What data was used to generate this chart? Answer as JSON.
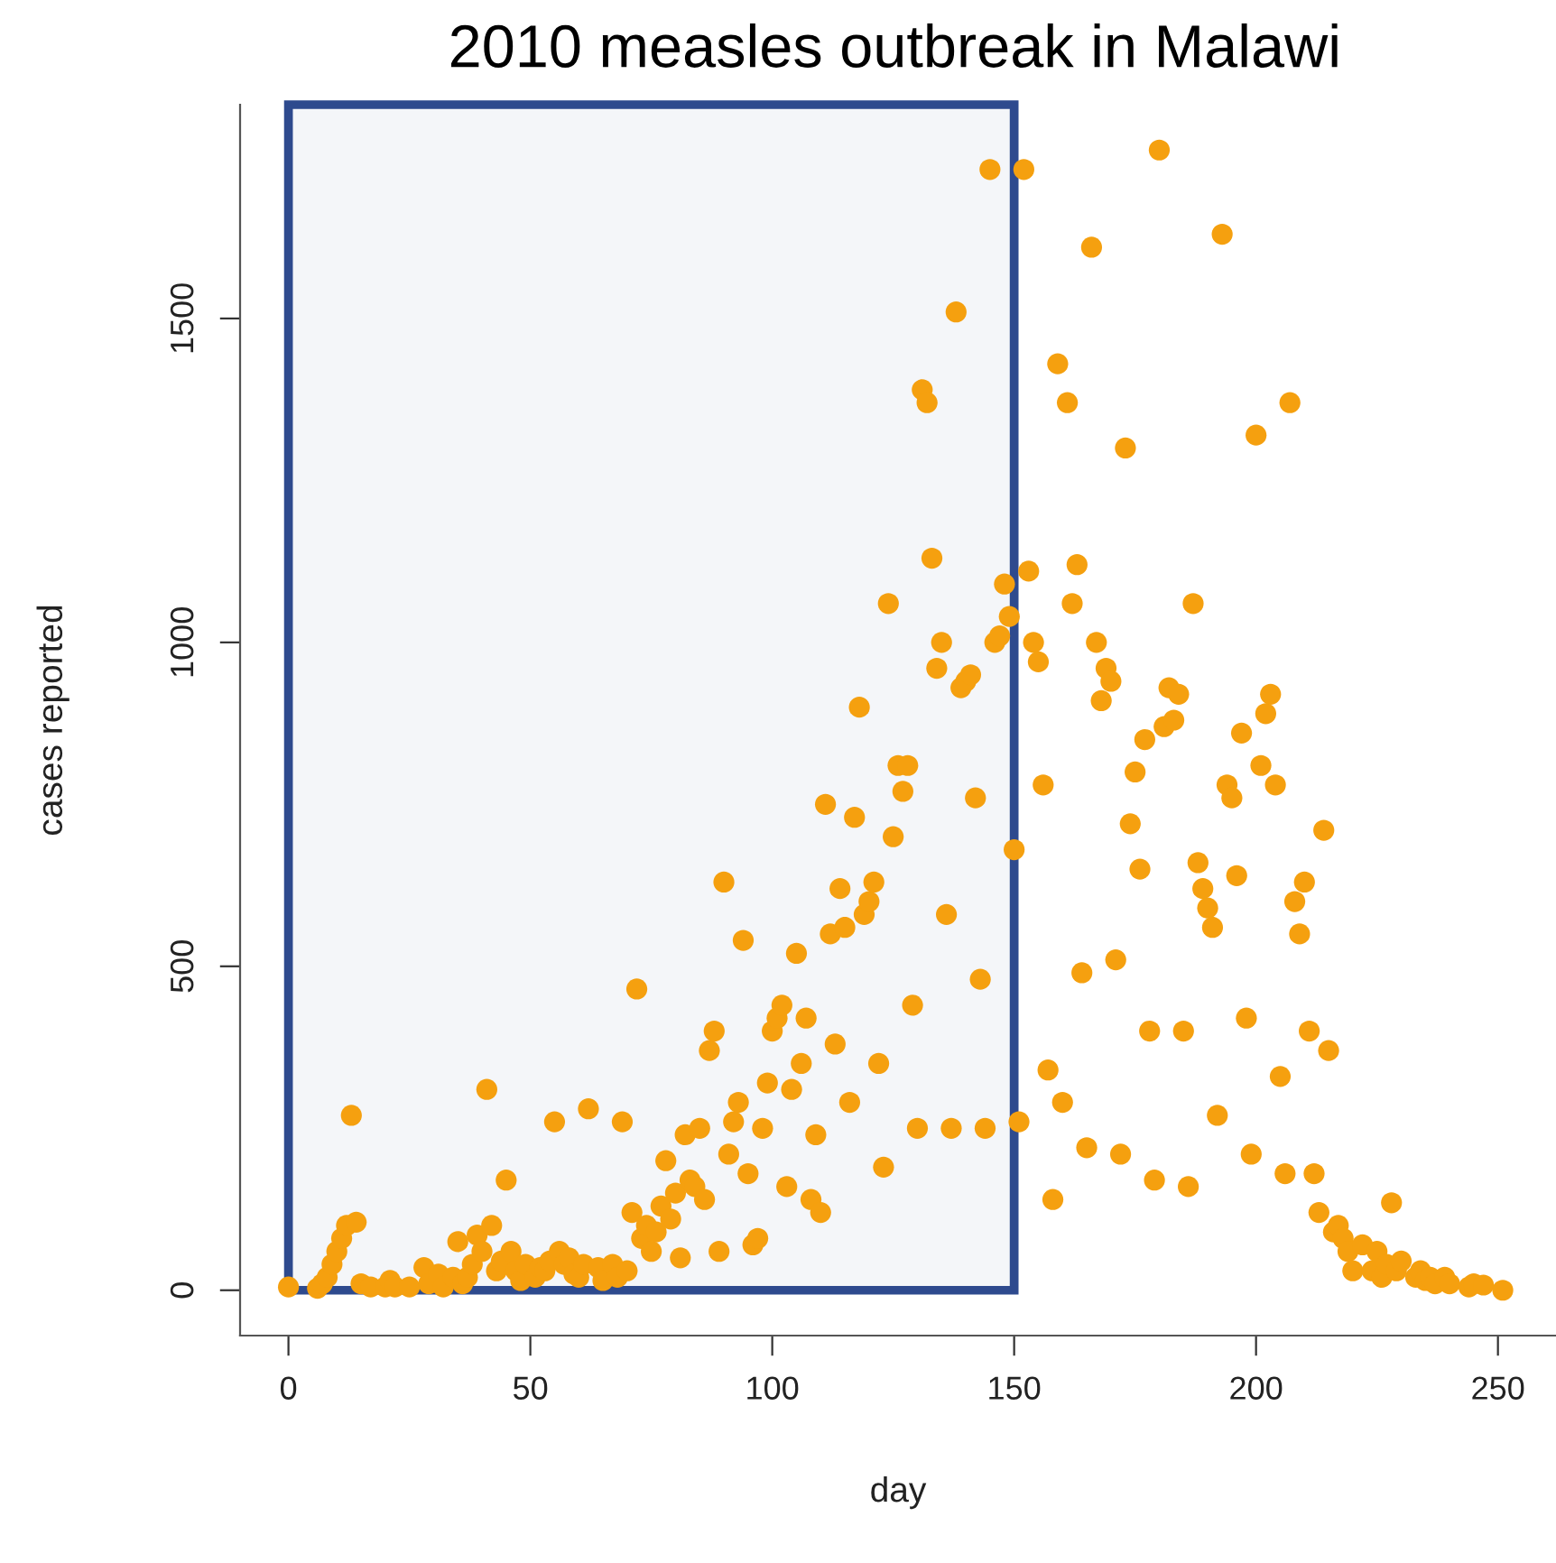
{
  "chart_data": {
    "type": "scatter",
    "title": "2010 measles outbreak in Malawi",
    "xlabel": "day",
    "ylabel": "cases reported",
    "x": [
      0,
      1,
      2,
      3,
      4,
      5,
      6,
      7,
      8,
      9,
      10,
      11,
      12,
      13,
      14,
      15,
      16,
      17,
      18,
      19,
      20,
      21,
      22,
      23,
      24,
      25,
      26,
      27,
      28,
      29,
      30,
      31,
      32,
      33,
      34,
      35,
      36,
      37,
      38,
      39,
      40,
      41,
      42,
      43,
      44,
      45,
      46,
      47,
      48,
      49,
      50,
      51,
      52,
      53,
      54,
      55,
      56,
      57,
      58,
      59,
      60,
      61,
      62,
      63,
      64,
      65,
      66,
      67,
      68,
      69,
      70,
      71,
      72,
      73,
      74,
      75,
      76,
      77,
      78,
      79,
      80,
      81,
      82,
      83,
      84,
      85,
      86,
      87,
      88,
      89,
      90,
      91,
      92,
      93,
      94,
      95,
      96,
      97,
      98,
      99,
      100,
      101,
      102,
      103,
      104,
      105,
      106,
      107,
      108,
      109,
      110,
      111,
      112,
      113,
      114,
      115,
      116,
      117,
      118,
      119,
      120,
      121,
      122,
      123,
      124,
      125,
      126,
      127,
      128,
      129,
      130,
      131,
      132,
      133,
      134,
      135,
      136,
      137,
      138,
      139,
      140,
      141,
      142,
      143,
      144,
      145,
      146,
      147,
      148,
      149,
      150,
      151,
      152,
      153,
      154,
      155,
      156,
      157,
      158,
      159,
      160,
      161,
      162,
      163,
      164,
      165,
      166,
      167,
      168,
      169,
      170,
      171,
      172,
      173,
      174,
      175,
      176,
      177,
      178,
      179,
      180,
      181,
      182,
      183,
      184,
      185,
      186,
      187,
      188,
      189,
      190,
      191,
      192,
      193,
      194,
      195,
      196,
      197,
      198,
      199,
      200,
      201,
      202,
      203,
      204,
      205,
      206,
      207,
      208,
      209,
      210,
      211,
      212,
      213,
      214,
      215,
      216,
      217,
      218,
      219,
      220,
      221,
      222,
      223,
      224,
      225,
      226,
      227,
      228,
      229,
      230,
      231,
      232,
      233,
      234,
      235,
      236,
      237,
      238,
      239,
      240,
      241,
      242,
      243,
      244,
      245,
      246,
      247,
      248,
      249,
      250,
      251
    ],
    "values": [
      5,
      null,
      null,
      null,
      null,
      null,
      3,
      10,
      20,
      40,
      60,
      80,
      100,
      270,
      105,
      10,
      null,
      5,
      null,
      null,
      5,
      15,
      5,
      null,
      null,
      5,
      null,
      null,
      35,
      10,
      null,
      25,
      5,
      null,
      20,
      75,
      10,
      20,
      40,
      85,
      60,
      310,
      100,
      30,
      45,
      170,
      60,
      30,
      15,
      40,
      null,
      20,
      35,
      30,
      45,
      260,
      60,
      40,
      50,
      25,
      20,
      40,
      280,
      null,
      35,
      15,
      null,
      40,
      20,
      260,
      30,
      120,
      465,
      80,
      100,
      60,
      90,
      130,
      200,
      110,
      150,
      50,
      240,
      170,
      160,
      250,
      140,
      370,
      400,
      60,
      630,
      210,
      260,
      290,
      540,
      180,
      70,
      80,
      250,
      320,
      400,
      420,
      440,
      160,
      310,
      520,
      350,
      420,
      140,
      240,
      120,
      750,
      550,
      380,
      620,
      560,
      290,
      730,
      900,
      580,
      600,
      630,
      350,
      190,
      1060,
      700,
      810,
      770,
      810,
      440,
      250,
      1390,
      1370,
      1130,
      960,
      1000,
      580,
      250,
      1510,
      930,
      940,
      950,
      760,
      480,
      250,
      1730,
      1000,
      1010,
      1090,
      1040,
      680,
      260,
      1730,
      1110,
      1000,
      970,
      780,
      340,
      140,
      1430,
      290,
      1370,
      1060,
      1120,
      490,
      220,
      1610,
      1000,
      910,
      960,
      940,
      510,
      210,
      1300,
      720,
      800,
      650,
      850,
      400,
      170,
      1760,
      870,
      930,
      880,
      920,
      400,
      160,
      1060,
      660,
      620,
      590,
      560,
      270,
      1630,
      780,
      760,
      640,
      860,
      420,
      210,
      1320,
      810,
      890,
      920,
      780,
      330,
      180,
      1370,
      600,
      550,
      630,
      400,
      180,
      120,
      710,
      370,
      90,
      100,
      80,
      60,
      30,
      null,
      70,
      null,
      30,
      60,
      20,
      40,
      135,
      30,
      45,
      null,
      null,
      20,
      30,
      15,
      20,
      10,
      null,
      20,
      10,
      null,
      null,
      null,
      5,
      10,
      null,
      8,
      null,
      null,
      null,
      0
    ],
    "color": "#f5a00f",
    "marker": "circle",
    "xlim": [
      -10,
      262
    ],
    "ylim": [
      -70,
      1830
    ],
    "xticks": [
      0,
      50,
      100,
      150,
      200,
      250
    ],
    "yticks": [
      0,
      500,
      1000,
      1500
    ],
    "grid": false,
    "bands": [
      {
        "axis": "x",
        "from": 0,
        "to": 150,
        "color": "#2e4a8e"
      }
    ]
  }
}
